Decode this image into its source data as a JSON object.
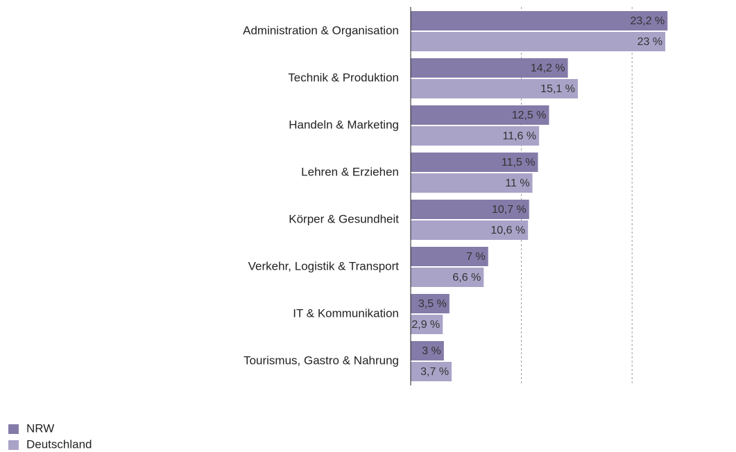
{
  "chart_data": {
    "type": "hbar",
    "categories": [
      "Administration & Organisation",
      "Technik & Produktion",
      "Handeln & Marketing",
      "Lehren & Erziehen",
      "Körper & Gesundheit",
      "Verkehr, Logistik & Transport",
      "IT & Kommunikation",
      "Tourismus, Gastro & Nahrung"
    ],
    "series": [
      {
        "name": "NRW",
        "color": "#857ba9",
        "values": [
          23.2,
          14.2,
          12.5,
          11.5,
          10.7,
          7,
          3.5,
          3
        ],
        "value_labels": [
          "23,2 %",
          "14,2 %",
          "12,5 %",
          "11,5 %",
          "10,7 %",
          "7 %",
          "3,5 %",
          "3 %"
        ]
      },
      {
        "name": "Deutschland",
        "color": "#aaa3c8",
        "values": [
          23,
          15.1,
          11.6,
          11,
          10.6,
          6.6,
          2.9,
          3.7
        ],
        "value_labels": [
          "23 %",
          "15,1 %",
          "11,6 %",
          "11 %",
          "10,6 %",
          "6,6 %",
          "2,9 %",
          "3,7 %"
        ]
      }
    ],
    "xlim": [
      0,
      25
    ],
    "xticks": [
      10,
      20
    ],
    "grid": true,
    "legend": "bottom-left"
  }
}
